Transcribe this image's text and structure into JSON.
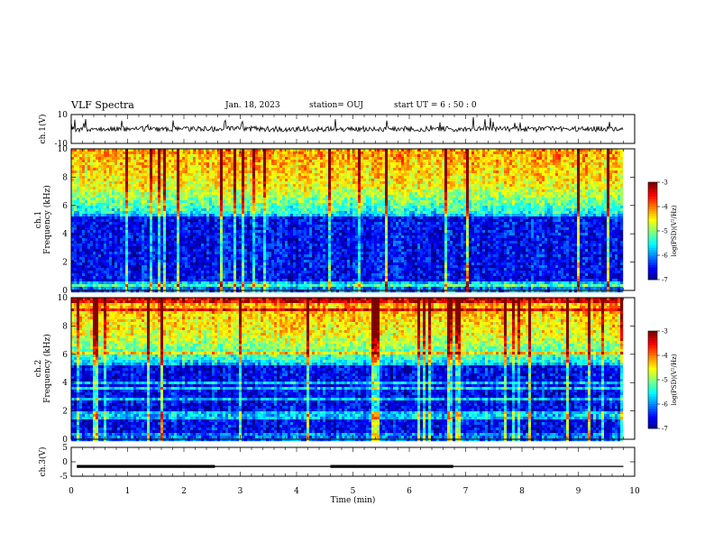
{
  "header": {
    "title": "VLF Spectra",
    "date": "Jan. 18, 2023",
    "station": "station= OUJ",
    "start": "start  UT =   6  : 50 : 0"
  },
  "chart_data": [
    {
      "type": "line",
      "panel": "waveform",
      "ylabel": "ch.1(V)",
      "ylim": [
        -10,
        10
      ],
      "yticks": [
        10,
        -10
      ],
      "xlim": [
        0,
        10
      ],
      "baseline": 0,
      "x_end": 9.8
    },
    {
      "type": "heatmap",
      "panel": "spectrogram-1",
      "ylabel": "ch.1\nFrequency  (kHz)",
      "ylim": [
        0,
        10
      ],
      "yticks": [
        0,
        2,
        4,
        6,
        8,
        10
      ],
      "xlim": [
        0,
        10
      ],
      "x_end": 9.8,
      "colorbar": {
        "label": "log(PSD)(V²/Hz)",
        "range": [
          -7,
          -3
        ],
        "ticks": [
          -3,
          -4,
          -5,
          -6,
          -7
        ]
      }
    },
    {
      "type": "heatmap",
      "panel": "spectrogram-2",
      "ylabel": "ch.2\nFrequency  (kHz)",
      "ylim": [
        0,
        10
      ],
      "yticks": [
        0,
        2,
        4,
        6,
        8,
        10
      ],
      "xlim": [
        0,
        10
      ],
      "x_end": 9.8,
      "colorbar": {
        "label": "log(PSD)(V²/Hz)",
        "range": [
          -7,
          -3
        ],
        "ticks": [
          -3,
          -4,
          -5,
          -6,
          -7
        ]
      }
    },
    {
      "type": "line",
      "panel": "ch3",
      "ylabel": "ch.3(V)",
      "ylim": [
        -5,
        5
      ],
      "yticks": [
        5,
        0,
        -5
      ],
      "xlim": [
        0,
        10
      ],
      "xlabel": "Time  (min)",
      "xticks": [
        0,
        1,
        2,
        3,
        4,
        5,
        6,
        7,
        8,
        9,
        10
      ],
      "baseline": -1.6,
      "segments": [
        [
          0.1,
          2.55,
          -1.6
        ],
        [
          4.6,
          6.78,
          -1.6
        ]
      ],
      "x_end": 9.8
    }
  ]
}
